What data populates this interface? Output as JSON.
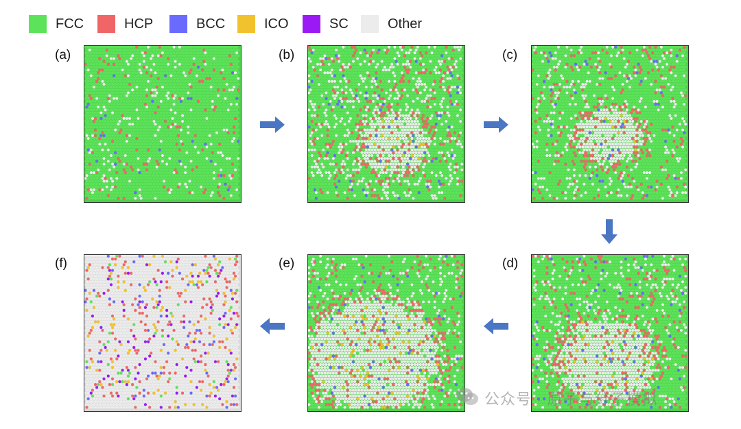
{
  "legend": {
    "items": [
      {
        "label": "FCC",
        "color": "#5de35a"
      },
      {
        "label": "HCP",
        "color": "#f06666"
      },
      {
        "label": "BCC",
        "color": "#6a6aff"
      },
      {
        "label": "ICO",
        "color": "#f2c12e"
      },
      {
        "label": "SC",
        "color": "#9b19f5"
      },
      {
        "label": "Other",
        "color": "#ececec"
      }
    ]
  },
  "panels": [
    {
      "id": "a",
      "label": "(a)"
    },
    {
      "id": "b",
      "label": "(b)"
    },
    {
      "id": "c",
      "label": "(c)"
    },
    {
      "id": "d",
      "label": "(d)"
    },
    {
      "id": "e",
      "label": "(e)"
    },
    {
      "id": "f",
      "label": "(f)"
    }
  ],
  "arrow_color": "#4a76c4",
  "watermark": {
    "text": "公众号 · 原子与分子模拟",
    "icon": "wechat-icon"
  }
}
